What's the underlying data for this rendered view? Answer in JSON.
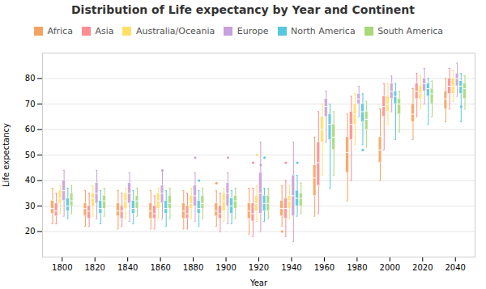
{
  "chart_data": {
    "type": "box",
    "title": "Distribution of Life expectancy by Year and Continent",
    "xlabel": "Year",
    "ylabel": "Life expectancy",
    "x": [
      1800,
      1820,
      1840,
      1860,
      1880,
      1900,
      1920,
      1940,
      1960,
      1980,
      2000,
      2020,
      2040
    ],
    "xlim": [
      1788,
      2052
    ],
    "xticks": [
      1800,
      1820,
      1840,
      1860,
      1880,
      1900,
      1920,
      1940,
      1960,
      1980,
      2000,
      2020,
      2040
    ],
    "ylim": [
      10,
      90
    ],
    "yticks": [
      20,
      30,
      40,
      50,
      60,
      70,
      80
    ],
    "grid": true,
    "legend": "top",
    "series": [
      {
        "name": "Africa",
        "color": "#F4A460",
        "values": [
          [
            23,
            27,
            29,
            32,
            37
          ],
          [
            22,
            26,
            29,
            31,
            36
          ],
          [
            21,
            26,
            28,
            31,
            36
          ],
          [
            21,
            25,
            28,
            31,
            36
          ],
          [
            21,
            25,
            28,
            31,
            36
          ],
          [
            22,
            26,
            28,
            31,
            36
          ],
          [
            19,
            25,
            28,
            31,
            37
          ],
          [
            22,
            26,
            29,
            32,
            38
          ],
          [
            26,
            34,
            41,
            46,
            57
          ],
          [
            32,
            43,
            51,
            57,
            66
          ],
          [
            40,
            47,
            52,
            57,
            68
          ],
          [
            56,
            63,
            66,
            70,
            76
          ],
          [
            63,
            68,
            72,
            75,
            80
          ]
        ],
        "outliers": [
          [],
          [],
          [],
          [],
          [],
          [
            39
          ],
          [],
          [
            20
          ],
          [],
          [],
          [],
          [],
          []
        ]
      },
      {
        "name": "Asia",
        "color": "#FF8C94",
        "values": [
          [
            23,
            26,
            28,
            31,
            35
          ],
          [
            22,
            25,
            28,
            30,
            35
          ],
          [
            22,
            25,
            28,
            30,
            35
          ],
          [
            21,
            25,
            27,
            30,
            34
          ],
          [
            21,
            25,
            27,
            30,
            35
          ],
          [
            20,
            25,
            27,
            30,
            35
          ],
          [
            18,
            24,
            27,
            31,
            37
          ],
          [
            18,
            25,
            29,
            33,
            40
          ],
          [
            27,
            38,
            47,
            55,
            67
          ],
          [
            40,
            56,
            62,
            67,
            73
          ],
          [
            52,
            65,
            69,
            73,
            78
          ],
          [
            65,
            72,
            75,
            78,
            82
          ],
          [
            68,
            74,
            77,
            80,
            84
          ]
        ],
        "outliers": [
          [],
          [],
          [],
          [],
          [],
          [],
          [
            47
          ],
          [
            47
          ],
          [],
          [],
          [],
          [],
          []
        ]
      },
      {
        "name": "Australia/Oceania",
        "color": "#FFE066",
        "values": [
          [
            27,
            31,
            33,
            36,
            38
          ],
          [
            26,
            30,
            33,
            35,
            38
          ],
          [
            25,
            29,
            32,
            35,
            37
          ],
          [
            25,
            29,
            32,
            35,
            37
          ],
          [
            25,
            29,
            31,
            34,
            37
          ],
          [
            24,
            28,
            32,
            35,
            37
          ],
          [
            24,
            28,
            31,
            34,
            38
          ],
          [
            25,
            29,
            32,
            34,
            38
          ],
          [
            42,
            55,
            60,
            65,
            70
          ],
          [
            54,
            62,
            66,
            70,
            74
          ],
          [
            62,
            67,
            70,
            73,
            78
          ],
          [
            68,
            72,
            74,
            77,
            81
          ],
          [
            71,
            74,
            77,
            80,
            83
          ]
        ],
        "outliers": [
          [],
          [],
          [],
          [],
          [],
          [],
          [
            50
          ],
          [],
          [],
          [],
          [],
          [],
          []
        ]
      },
      {
        "name": "Europe",
        "color": "#C8A0DC",
        "values": [
          [
            26,
            32,
            36,
            40,
            44
          ],
          [
            25,
            31,
            35,
            39,
            44
          ],
          [
            24,
            31,
            35,
            39,
            43
          ],
          [
            25,
            31,
            35,
            38,
            44
          ],
          [
            24,
            30,
            34,
            38,
            43
          ],
          [
            23,
            30,
            35,
            39,
            43
          ],
          [
            20,
            27,
            35,
            43,
            55
          ],
          [
            16,
            26,
            34,
            42,
            55
          ],
          [
            55,
            65,
            69,
            72,
            75
          ],
          [
            65,
            70,
            72,
            74,
            77
          ],
          [
            67,
            72,
            75,
            78,
            81
          ],
          [
            70,
            75,
            78,
            80,
            84
          ],
          [
            73,
            77,
            80,
            82,
            86
          ]
        ],
        "outliers": [
          [],
          [],
          [],
          [
            44
          ],
          [
            49
          ],
          [
            49
          ],
          [
            46
          ],
          [],
          [],
          [],
          [],
          [],
          []
        ]
      },
      {
        "name": "North America",
        "color": "#56C8E0",
        "values": [
          [
            25,
            28,
            30,
            33,
            37
          ],
          [
            23,
            27,
            29,
            32,
            36
          ],
          [
            23,
            27,
            29,
            32,
            36
          ],
          [
            22,
            27,
            29,
            32,
            36
          ],
          [
            22,
            27,
            29,
            32,
            36
          ],
          [
            23,
            27,
            30,
            33,
            36
          ],
          [
            24,
            28,
            31,
            34,
            37
          ],
          [
            26,
            30,
            33,
            36,
            42
          ],
          [
            37,
            56,
            62,
            66,
            70
          ],
          [
            54,
            63,
            67,
            70,
            74
          ],
          [
            56,
            70,
            73,
            75,
            78
          ],
          [
            62,
            73,
            76,
            78,
            80
          ],
          [
            63,
            74,
            77,
            79,
            82
          ]
        ],
        "outliers": [
          [],
          [],
          [],
          [],
          [
            40
          ],
          [],
          [
            49
          ],
          [
            47
          ],
          [],
          [
            52
          ],
          [],
          [],
          [
            69
          ]
        ]
      },
      {
        "name": "South America",
        "color": "#A8D878",
        "values": [
          [
            27,
            30,
            32,
            35,
            38
          ],
          [
            26,
            29,
            32,
            34,
            37
          ],
          [
            26,
            29,
            32,
            34,
            37
          ],
          [
            25,
            29,
            31,
            34,
            37
          ],
          [
            25,
            29,
            31,
            34,
            37
          ],
          [
            25,
            29,
            32,
            34,
            37
          ],
          [
            25,
            28,
            31,
            34,
            37
          ],
          [
            27,
            30,
            33,
            35,
            39
          ],
          [
            42,
            52,
            57,
            62,
            67
          ],
          [
            53,
            60,
            64,
            67,
            71
          ],
          [
            59,
            66,
            70,
            72,
            75
          ],
          [
            65,
            70,
            74,
            76,
            79
          ],
          [
            68,
            72,
            76,
            78,
            81
          ]
        ],
        "outliers": [
          [],
          [],
          [],
          [],
          [],
          [],
          [],
          [],
          [],
          [],
          [],
          [],
          []
        ]
      }
    ]
  }
}
